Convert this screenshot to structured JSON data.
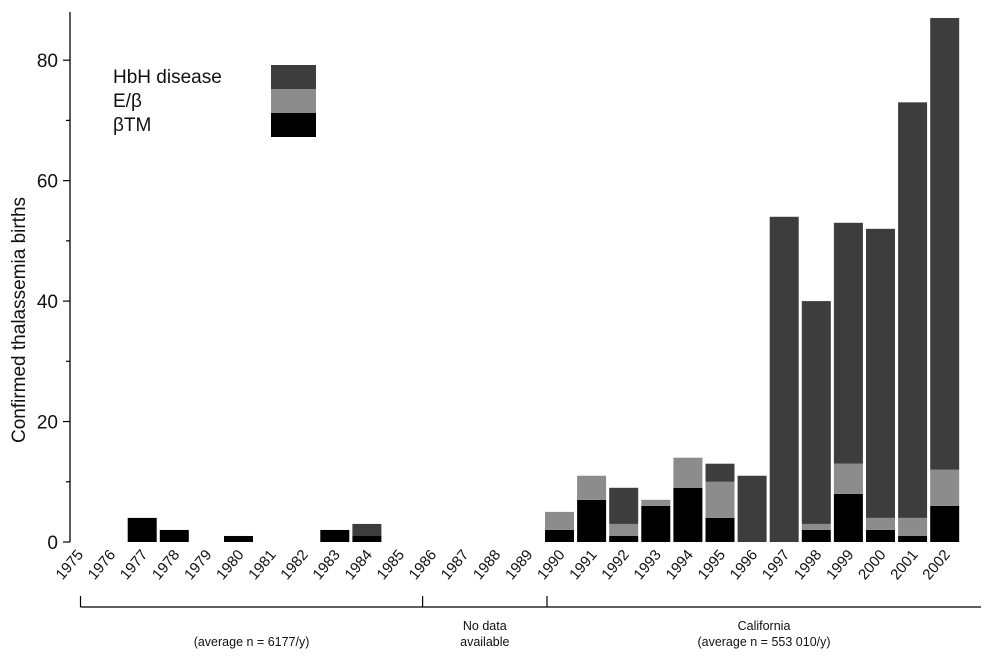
{
  "chart_data": {
    "type": "bar",
    "stacked": true,
    "ylabel": "Confirmed thalassemia births",
    "ylim": [
      0,
      88
    ],
    "yticks": [
      0,
      20,
      40,
      60,
      80
    ],
    "categories": [
      "1975",
      "1976",
      "1977",
      "1978",
      "1979",
      "1980",
      "1981",
      "1982",
      "1983",
      "1984",
      "1985",
      "1986",
      "1987",
      "1988",
      "1989",
      "1990",
      "1991",
      "1992",
      "1993",
      "1994",
      "1995",
      "1996",
      "1997",
      "1998",
      "1999",
      "2000",
      "2001",
      "2002"
    ],
    "series": [
      {
        "name": "βTM",
        "color": "#000000",
        "values": [
          0,
          0,
          4,
          2,
          0,
          1,
          0,
          0,
          2,
          1,
          0,
          0,
          0,
          0,
          0,
          2,
          7,
          1,
          6,
          9,
          4,
          0,
          0,
          2,
          8,
          2,
          1,
          6
        ]
      },
      {
        "name": "E/β",
        "color": "#8c8c8c",
        "values": [
          0,
          0,
          0,
          0,
          0,
          0,
          0,
          0,
          0,
          0,
          0,
          0,
          0,
          0,
          0,
          3,
          4,
          2,
          1,
          5,
          6,
          0,
          0,
          1,
          5,
          2,
          3,
          6
        ]
      },
      {
        "name": "HbH disease",
        "color": "#3d3d3d",
        "values": [
          0,
          0,
          0,
          0,
          0,
          0,
          0,
          0,
          0,
          2,
          0,
          0,
          0,
          0,
          0,
          0,
          0,
          6,
          0,
          0,
          3,
          11,
          54,
          37,
          40,
          48,
          69,
          75
        ]
      }
    ],
    "legend": {
      "placement": "top-left",
      "order": [
        "HbH disease",
        "E/β",
        "βTM"
      ],
      "labels": [
        "HbH disease",
        "E/β",
        "βTM"
      ]
    },
    "periods": [
      {
        "from": "1975",
        "to": "1985",
        "line1": "",
        "line2": "(average n = 6177/y)"
      },
      {
        "from": "1986",
        "to": "1989",
        "line1": "No data",
        "line2": "available"
      },
      {
        "from": "1990",
        "to": "2002",
        "line1": "California",
        "line2": "(average n = 553 010/y)"
      }
    ]
  }
}
